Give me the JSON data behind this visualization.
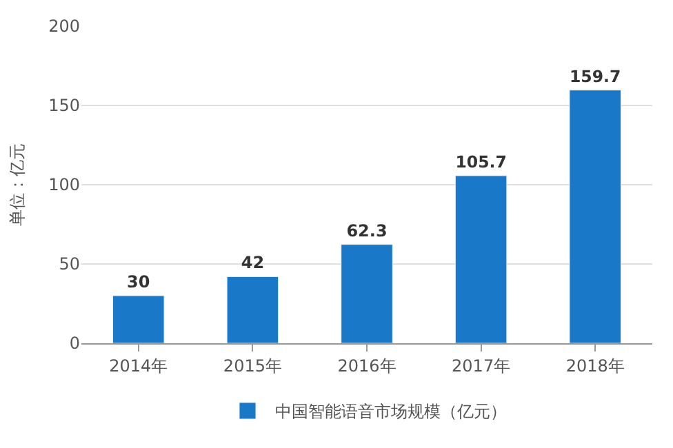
{
  "chart_data": {
    "type": "bar",
    "ylabel": "单位：亿元",
    "categories": [
      "2014年",
      "2015年",
      "2016年",
      "2017年",
      "2018年"
    ],
    "series": [
      {
        "name": "中国智能语音市场规模（亿元）",
        "color": "#1a78c8",
        "values": [
          30,
          42,
          62.3,
          105.7,
          159.7
        ]
      }
    ],
    "ylim": [
      0,
      200
    ],
    "yticks": [
      0,
      50,
      100,
      150,
      200
    ],
    "grid": "y",
    "legend": "bottom",
    "data_labels": true
  }
}
